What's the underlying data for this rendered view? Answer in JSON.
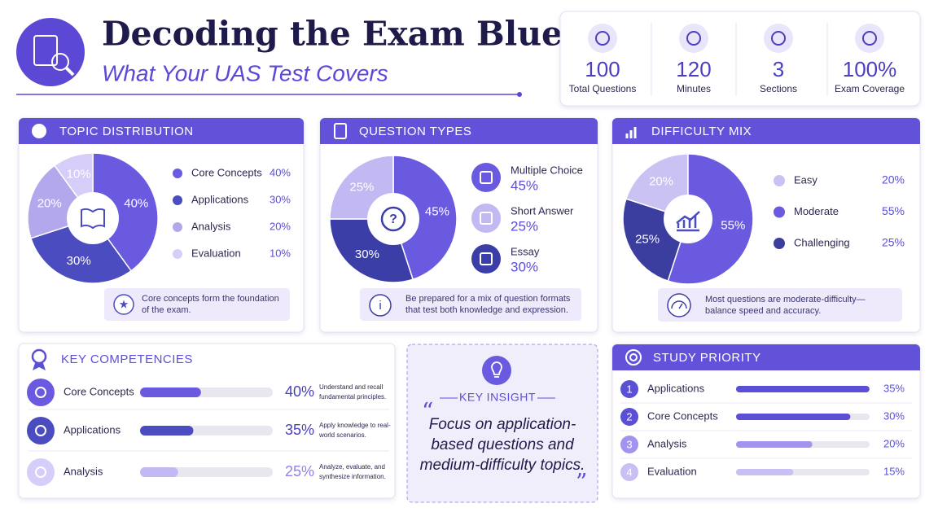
{
  "header": {
    "title": "Decoding the Exam Blueprint",
    "subtitle": "What Your UAS Test Covers"
  },
  "stats": [
    {
      "value": "100",
      "label": "Total Questions"
    },
    {
      "value": "120",
      "label": "Minutes"
    },
    {
      "value": "3",
      "label": "Sections"
    },
    {
      "value": "100%",
      "label": "Exam Coverage"
    }
  ],
  "topic_distribution": {
    "title": "TOPIC DISTRIBUTION",
    "type": "pie",
    "categories": [
      "Core Concepts",
      "Applications",
      "Analysis",
      "Evaluation"
    ],
    "values": [
      40,
      30,
      20,
      10
    ],
    "value_labels": [
      "40%",
      "30%",
      "20%",
      "10%"
    ],
    "colors": [
      "#6a5ae0",
      "#4a4cc0",
      "#b3a8ec",
      "#d6cef8"
    ],
    "note": [
      "Core concepts form the foundation",
      "of the exam."
    ]
  },
  "question_types": {
    "title": "QUESTION TYPES",
    "type": "pie",
    "categories": [
      "Multiple Choice",
      "Short Answer",
      "Essay"
    ],
    "values": [
      45,
      25,
      30
    ],
    "value_labels": [
      "45%",
      "25%",
      "30%"
    ],
    "colors": [
      "#6a5ae0",
      "#c2b8f2",
      "#3b3ea6"
    ],
    "note": [
      "Be prepared for a mix of question formats",
      "that test both knowledge and expression."
    ]
  },
  "difficulty_mix": {
    "title": "DIFFICULTY MIX",
    "type": "pie",
    "categories": [
      "Easy",
      "Moderate",
      "Challenging"
    ],
    "values": [
      20,
      55,
      25
    ],
    "value_labels": [
      "20%",
      "55%",
      "25%"
    ],
    "colors": [
      "#cbc2f4",
      "#6a5ae0",
      "#3b3e9e"
    ],
    "note": [
      "Most questions are moderate-difficulty—",
      "balance speed and accuracy."
    ]
  },
  "key_competencies": {
    "title": "KEY COMPETENCIES",
    "type": "bar",
    "categories": [
      "Core Concepts",
      "Applications",
      "Analysis"
    ],
    "values": [
      40,
      35,
      25
    ],
    "value_labels": [
      "40%",
      "35%",
      "25%"
    ],
    "colors": [
      "#6a5ae0",
      "#4a4cc0",
      "#c2b8f2"
    ],
    "descriptions": [
      [
        "Understand and recall",
        "fundamental principles."
      ],
      [
        "Apply knowledge to real-",
        "world scenarios."
      ],
      [
        "Analyze, evaluate, and",
        "synthesize information."
      ]
    ]
  },
  "key_insight": {
    "title": "KEY INSIGHT",
    "quote": [
      "Focus on application-",
      "based questions and",
      "medium-difficulty topics."
    ]
  },
  "study_priority": {
    "title": "STUDY PRIORITY",
    "type": "bar",
    "ranks": [
      "1",
      "2",
      "3",
      "4"
    ],
    "categories": [
      "Applications",
      "Core Concepts",
      "Analysis",
      "Evaluation"
    ],
    "values": [
      35,
      30,
      20,
      15
    ],
    "value_labels": [
      "35%",
      "30%",
      "20%",
      "15%"
    ],
    "colors": [
      "#5b4fd6",
      "#5b4fd6",
      "#a293ee",
      "#c9bff5"
    ]
  }
}
